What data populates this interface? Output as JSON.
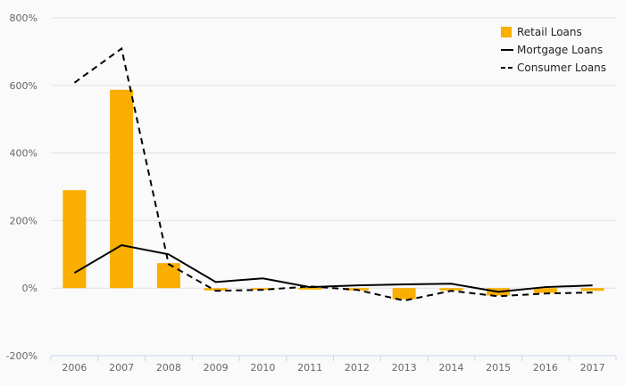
{
  "chart_data": {
    "type": "bar",
    "title": "",
    "xlabel": "",
    "ylabel": "",
    "categories": [
      "2006",
      "2007",
      "2008",
      "2009",
      "2010",
      "2011",
      "2012",
      "2013",
      "2014",
      "2015",
      "2016",
      "2017"
    ],
    "ylim": [
      -200,
      800
    ],
    "yticks": [
      -200,
      0,
      200,
      400,
      600,
      800
    ],
    "ytick_labels": [
      "-200%",
      "0%",
      "200%",
      "400%",
      "600%",
      "800%"
    ],
    "grid": true,
    "legend_position": "top-right",
    "series": [
      {
        "name": "Retail Loans",
        "kind": "bar",
        "color": "#f9ae00",
        "values": [
          290,
          587,
          74,
          -7,
          -5,
          1,
          -7,
          -33,
          -7,
          -22,
          -14,
          -8
        ]
      },
      {
        "name": "Mortgage Loans",
        "kind": "line",
        "color": "#000000",
        "dash": false,
        "values": [
          45,
          127,
          100,
          18,
          29,
          3,
          8,
          11,
          13,
          -11,
          3,
          8
        ]
      },
      {
        "name": "Consumer Loans",
        "kind": "line",
        "color": "#000000",
        "dash": true,
        "values": [
          608,
          709,
          71,
          -8,
          -5,
          5,
          -5,
          -37,
          -8,
          -24,
          -16,
          -13
        ]
      }
    ]
  }
}
